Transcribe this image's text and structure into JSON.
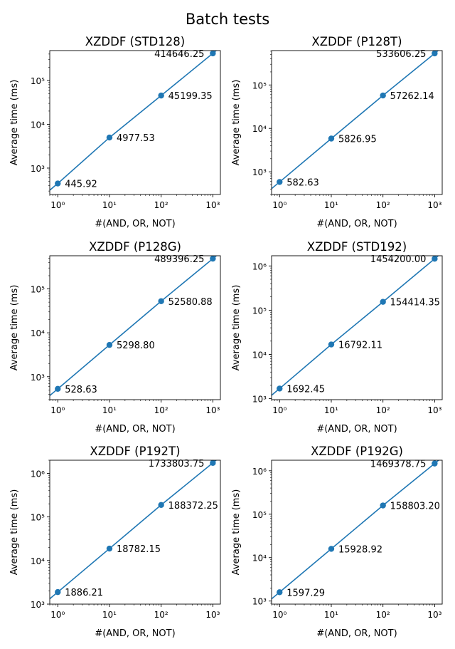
{
  "suptitle": "Batch tests",
  "chart_data": [
    {
      "type": "line",
      "title": "XZDDF (STD128)",
      "xlabel": "#(AND, OR, NOT)",
      "ylabel": "Average time (ms)",
      "xscale": "log",
      "yscale": "log",
      "xlim": [
        0.7,
        1400
      ],
      "ylim": [
        250,
        480000
      ],
      "xticks": [
        1,
        10,
        100,
        1000
      ],
      "yticks": [
        1000,
        10000,
        100000
      ],
      "x": [
        1,
        10,
        100,
        1000
      ],
      "y": [
        445.92,
        4977.53,
        45199.35,
        414646.25
      ],
      "labels": [
        "445.92",
        "4977.53",
        "45199.35",
        "414646.25"
      ],
      "color": "#1f77b4"
    },
    {
      "type": "line",
      "title": "XZDDF (P128T)",
      "xlabel": "#(AND, OR, NOT)",
      "ylabel": "Average time (ms)",
      "xscale": "log",
      "yscale": "log",
      "xlim": [
        0.7,
        1400
      ],
      "ylim": [
        300,
        620000
      ],
      "xticks": [
        1,
        10,
        100,
        1000
      ],
      "yticks": [
        1000,
        10000,
        100000
      ],
      "x": [
        1,
        10,
        100,
        1000
      ],
      "y": [
        582.63,
        5826.95,
        57262.14,
        533606.25
      ],
      "labels": [
        "582.63",
        "5826.95",
        "57262.14",
        "533606.25"
      ],
      "color": "#1f77b4"
    },
    {
      "type": "line",
      "title": "XZDDF (P128G)",
      "xlabel": "#(AND, OR, NOT)",
      "ylabel": "Average time (ms)",
      "xscale": "log",
      "yscale": "log",
      "xlim": [
        0.7,
        1400
      ],
      "ylim": [
        300,
        570000
      ],
      "xticks": [
        1,
        10,
        100,
        1000
      ],
      "yticks": [
        1000,
        10000,
        100000
      ],
      "x": [
        1,
        10,
        100,
        1000
      ],
      "y": [
        528.63,
        5298.8,
        52580.88,
        489396.25
      ],
      "labels": [
        "528.63",
        "5298.80",
        "52580.88",
        "489396.25"
      ],
      "color": "#1f77b4"
    },
    {
      "type": "line",
      "title": "XZDDF (STD192)",
      "xlabel": "#(AND, OR, NOT)",
      "ylabel": "Average time (ms)",
      "xscale": "log",
      "yscale": "log",
      "xlim": [
        0.7,
        1400
      ],
      "ylim": [
        950,
        1700000
      ],
      "xticks": [
        1,
        10,
        100,
        1000
      ],
      "yticks": [
        1000,
        10000,
        100000,
        1000000
      ],
      "x": [
        1,
        10,
        100,
        1000
      ],
      "y": [
        1692.45,
        16792.11,
        154414.35,
        1454200.0
      ],
      "labels": [
        "1692.45",
        "16792.11",
        "154414.35",
        "1454200.00"
      ],
      "color": "#1f77b4"
    },
    {
      "type": "line",
      "title": "XZDDF (P192T)",
      "xlabel": "#(AND, OR, NOT)",
      "ylabel": "Average time (ms)",
      "xscale": "log",
      "yscale": "log",
      "xlim": [
        0.7,
        1400
      ],
      "ylim": [
        1000,
        2000000
      ],
      "xticks": [
        1,
        10,
        100,
        1000
      ],
      "yticks": [
        1000,
        10000,
        100000,
        1000000
      ],
      "x": [
        1,
        10,
        100,
        1000
      ],
      "y": [
        1886.21,
        18782.15,
        188372.25,
        1733803.75
      ],
      "labels": [
        "1886.21",
        "18782.15",
        "188372.25",
        "1733803.75"
      ],
      "color": "#1f77b4"
    },
    {
      "type": "line",
      "title": "XZDDF (P192G)",
      "xlabel": "#(AND, OR, NOT)",
      "ylabel": "Average time (ms)",
      "xscale": "log",
      "yscale": "log",
      "xlim": [
        0.7,
        1400
      ],
      "ylim": [
        850,
        1750000
      ],
      "xticks": [
        1,
        10,
        100,
        1000
      ],
      "yticks": [
        1000,
        10000,
        100000,
        1000000
      ],
      "x": [
        1,
        10,
        100,
        1000
      ],
      "y": [
        1597.29,
        15928.92,
        158803.2,
        1469378.75
      ],
      "labels": [
        "1597.29",
        "15928.92",
        "158803.20",
        "1469378.75"
      ],
      "color": "#1f77b4"
    }
  ]
}
